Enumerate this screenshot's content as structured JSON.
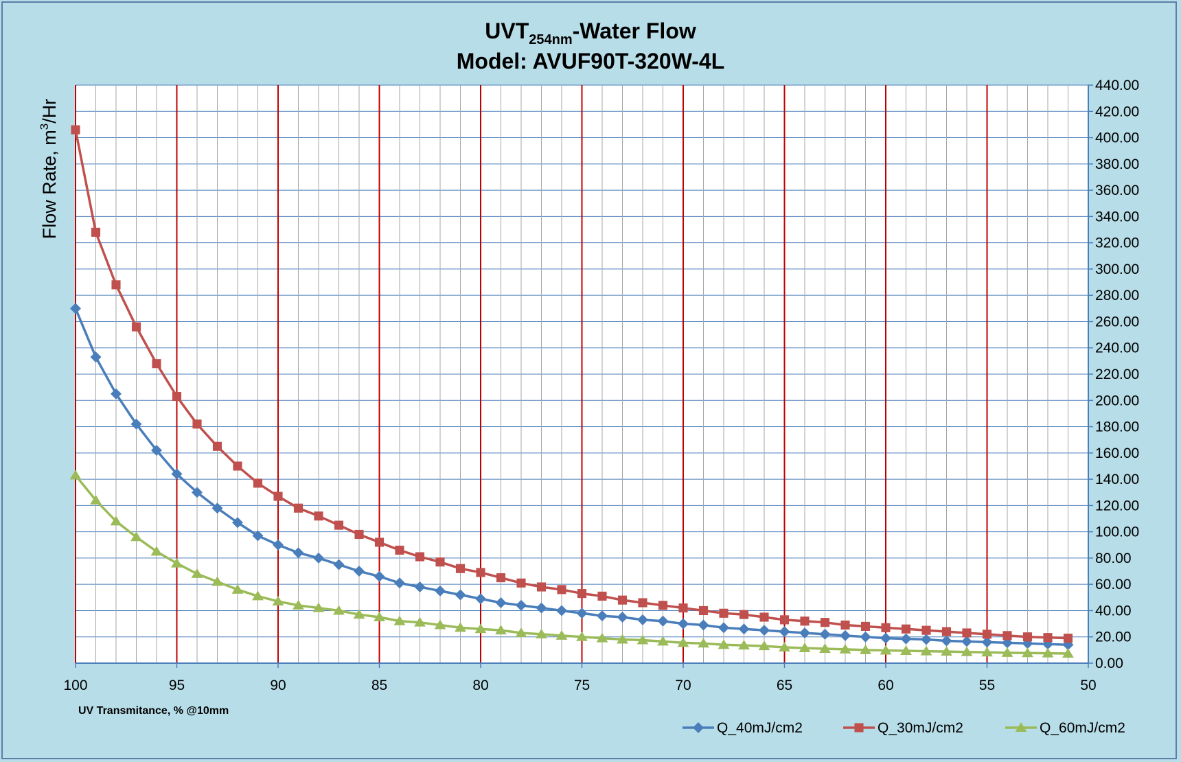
{
  "chart_data": {
    "type": "line",
    "title": {
      "line1_main": "UVT",
      "line1_sub": "254nm",
      "line1_rest": "-Water Flow",
      "line2": "Model:  AVUF90T-320W-4L"
    },
    "xlabel": "UV Transmitance,  % @10mm",
    "ylabel_main": "Flow Rate, m",
    "ylabel_sup": "3",
    "ylabel_rest": "/Hr",
    "x_axis": {
      "min": 50,
      "max": 100,
      "reversed": true,
      "major_step": 5,
      "minor_step": 1
    },
    "y_axis": {
      "min": 0,
      "max": 440,
      "step": 20,
      "position": "right",
      "decimals": 2
    },
    "x_tick_labels": [
      "100",
      "95",
      "90",
      "85",
      "80",
      "75",
      "70",
      "65",
      "60",
      "55",
      "50"
    ],
    "y_tick_labels": [
      "0.00",
      "20.00",
      "40.00",
      "60.00",
      "80.00",
      "100.00",
      "120.00",
      "140.00",
      "160.00",
      "180.00",
      "200.00",
      "220.00",
      "240.00",
      "260.00",
      "280.00",
      "300.00",
      "320.00",
      "340.00",
      "360.00",
      "380.00",
      "400.00",
      "420.00",
      "440.00"
    ],
    "grid": true,
    "legend_position": "bottom-right",
    "x": [
      100,
      99,
      98,
      97,
      96,
      95,
      94,
      93,
      92,
      91,
      90,
      89,
      88,
      87,
      86,
      85,
      84,
      83,
      82,
      81,
      80,
      79,
      78,
      77,
      76,
      75,
      74,
      73,
      72,
      71,
      70,
      69,
      68,
      67,
      66,
      65,
      64,
      63,
      62,
      61,
      60,
      59,
      58,
      57,
      56,
      55,
      54,
      53,
      52,
      51
    ],
    "series": [
      {
        "name": "Q_40mJ/cm2",
        "color": "#4a7ebb",
        "marker": "diamond",
        "values": [
          270,
          233,
          205,
          182,
          162,
          144,
          130,
          118,
          107,
          97,
          90,
          84,
          80,
          75,
          70,
          66,
          61,
          58,
          55,
          52,
          49,
          46,
          44,
          42,
          40,
          38,
          36,
          35,
          33,
          32,
          30,
          29,
          27,
          26,
          25,
          24,
          23,
          22,
          21,
          20,
          19,
          18.5,
          18,
          17,
          16.5,
          16,
          15.5,
          15,
          14.5,
          14
        ]
      },
      {
        "name": "Q_30mJ/cm2",
        "color": "#c0504d",
        "marker": "square",
        "values": [
          406,
          328,
          288,
          256,
          228,
          203,
          182,
          165,
          150,
          137,
          127,
          118,
          112,
          105,
          98,
          92,
          86,
          81,
          77,
          72,
          69,
          65,
          61,
          58,
          56,
          53,
          51,
          48,
          46,
          44,
          42,
          40,
          38,
          37,
          35,
          33,
          32,
          31,
          29,
          28,
          27,
          26,
          25,
          24,
          23,
          22,
          21,
          20,
          19.5,
          19
        ]
      },
      {
        "name": "Q_60mJ/cm2",
        "color": "#9bbb59",
        "marker": "triangle",
        "values": [
          143,
          124,
          108,
          96,
          85,
          76,
          68,
          62,
          56,
          51,
          47,
          44,
          42,
          40,
          37,
          35,
          32,
          31,
          29,
          27,
          26,
          25,
          23,
          22,
          21,
          20,
          19,
          18,
          17.5,
          16.5,
          15.5,
          15,
          14,
          13.5,
          13,
          12,
          11.5,
          11,
          10.5,
          10,
          9.7,
          9.4,
          9.1,
          8.8,
          8.5,
          8.2,
          7.9,
          7.7,
          7.5,
          7.3
        ]
      }
    ]
  }
}
